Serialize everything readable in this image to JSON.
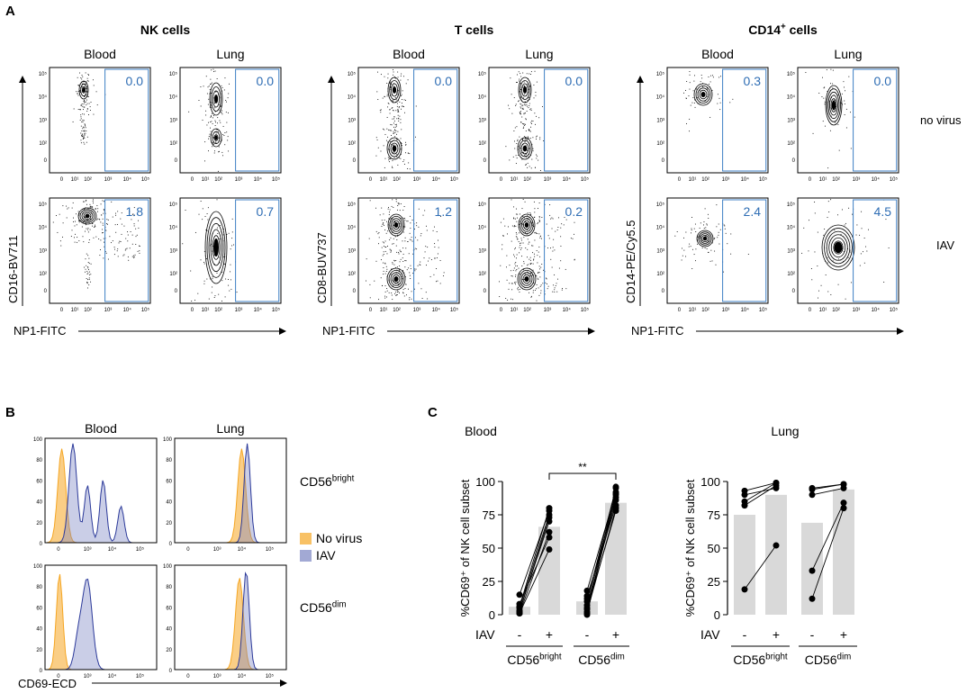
{
  "panel_a": {
    "label": "A",
    "groups": [
      {
        "title": "NK cells",
        "title_sup": "",
        "y_axis_label": "CD16-BV711",
        "x_axis_label": "NP1-FITC",
        "col_labels": [
          "Blood",
          "Lung"
        ],
        "plots": [
          {
            "gate_value": "0.0",
            "shape": "nk_blood_nv"
          },
          {
            "gate_value": "0.0",
            "shape": "nk_lung_nv"
          },
          {
            "gate_value": "1.8",
            "shape": "nk_blood_iav"
          },
          {
            "gate_value": "0.7",
            "shape": "nk_lung_iav"
          }
        ]
      },
      {
        "title": "T cells",
        "title_sup": "",
        "y_axis_label": "CD8-BUV737",
        "x_axis_label": "NP1-FITC",
        "col_labels": [
          "Blood",
          "Lung"
        ],
        "plots": [
          {
            "gate_value": "0.0",
            "shape": "t_nv"
          },
          {
            "gate_value": "0.0",
            "shape": "t_nv"
          },
          {
            "gate_value": "1.2",
            "shape": "t_iav"
          },
          {
            "gate_value": "0.2",
            "shape": "t_iav"
          }
        ]
      },
      {
        "title": "CD14",
        "title_sup": "+",
        "title_suffix": " cells",
        "y_axis_label": "CD14-PE/Cy5.5",
        "x_axis_label": "NP1-FITC",
        "col_labels": [
          "Blood",
          "Lung"
        ],
        "plots": [
          {
            "gate_value": "0.3",
            "shape": "cd14_blood_nv"
          },
          {
            "gate_value": "0.0",
            "shape": "cd14_lung_nv"
          },
          {
            "gate_value": "2.4",
            "shape": "cd14_blood_iav"
          },
          {
            "gate_value": "4.5",
            "shape": "cd14_lung_iav"
          }
        ]
      }
    ],
    "row_labels": [
      "no virus",
      "IAV"
    ],
    "y_ticks": [
      "10⁵",
      "10⁴",
      "10³",
      "10²",
      "0"
    ],
    "x_ticks": [
      "0",
      "10¹",
      "10²",
      "10³",
      "10⁴",
      "10⁵"
    ]
  },
  "panel_b": {
    "label": "B",
    "col_labels": [
      "Blood",
      "Lung"
    ],
    "row_labels": [
      {
        "base": "CD56",
        "sup": "bright"
      },
      {
        "base": "CD56",
        "sup": "dim"
      }
    ],
    "x_axis_label": "CD69-ECD",
    "y_ticks": [
      "100",
      "80",
      "60",
      "40",
      "20",
      "0"
    ],
    "x_ticks": [
      "0",
      "10³",
      "10⁴",
      "10⁵"
    ],
    "legend": [
      {
        "label": "No virus",
        "color": "#f5a623"
      },
      {
        "label": "IAV",
        "color": "#7b84c2"
      }
    ]
  },
  "chart_data": [
    {
      "type": "bar",
      "title": "Blood",
      "ylabel": "%CD69⁺ of NK cell subset",
      "ylim": [
        0,
        100
      ],
      "y_ticks": [
        0,
        25,
        50,
        75,
        100
      ],
      "condition_label": "IAV",
      "categories": [
        "CD56bright -",
        "CD56bright +",
        "CD56dim -",
        "CD56dim +"
      ],
      "bar_signs": [
        "-",
        "+",
        "-",
        "+"
      ],
      "group_labels": [
        {
          "base": "CD56",
          "sup": "bright"
        },
        {
          "base": "CD56",
          "sup": "dim"
        }
      ],
      "values": [
        6,
        66,
        10,
        84
      ],
      "paired_points": [
        [
          [
            1,
            62
          ],
          [
            6,
            80
          ],
          [
            15,
            78
          ],
          [
            3,
            70
          ],
          [
            2,
            73
          ],
          [
            8,
            58
          ],
          [
            1,
            49
          ],
          [
            5,
            75
          ]
        ],
        [
          [
            2,
            80
          ],
          [
            10,
            95
          ],
          [
            5,
            86
          ],
          [
            18,
            92
          ],
          [
            1,
            90
          ],
          [
            12,
            88
          ],
          [
            4,
            78
          ],
          [
            7,
            91
          ],
          [
            0,
            96
          ],
          [
            14,
            82
          ]
        ]
      ],
      "significance": "**"
    },
    {
      "type": "bar",
      "title": "Lung",
      "ylabel": "%CD69⁺ of NK cell subset",
      "ylim": [
        0,
        100
      ],
      "y_ticks": [
        0,
        25,
        50,
        75,
        100
      ],
      "condition_label": "IAV",
      "categories": [
        "CD56bright -",
        "CD56bright +",
        "CD56dim -",
        "CD56dim +"
      ],
      "bar_signs": [
        "-",
        "+",
        "-",
        "+"
      ],
      "group_labels": [
        {
          "base": "CD56",
          "sup": "bright"
        },
        {
          "base": "CD56",
          "sup": "dim"
        }
      ],
      "values": [
        75,
        90,
        69,
        94
      ],
      "paired_points": [
        [
          [
            93,
            99
          ],
          [
            90,
            95
          ],
          [
            85,
            99
          ],
          [
            82,
            97
          ],
          [
            19,
            52
          ]
        ],
        [
          [
            94,
            98
          ],
          [
            95,
            98
          ],
          [
            90,
            95
          ],
          [
            33,
            84
          ],
          [
            12,
            80
          ]
        ]
      ],
      "significance": ""
    }
  ],
  "panel_c": {
    "label": "C"
  }
}
